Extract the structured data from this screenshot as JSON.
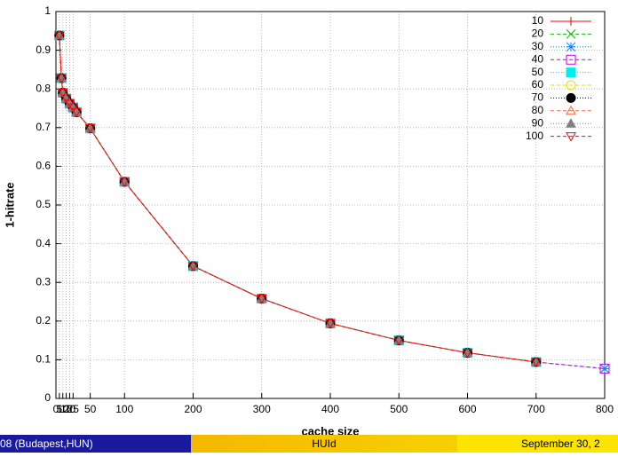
{
  "chart_data": {
    "type": "line",
    "xlabel": "cache size",
    "ylabel": "1-hitrate",
    "x": [
      5,
      8,
      10,
      15,
      20,
      25,
      30,
      50,
      100,
      200,
      300,
      400,
      500,
      600,
      700,
      800
    ],
    "xlim": [
      0,
      800
    ],
    "ylim": [
      0,
      1
    ],
    "xticks": [
      0,
      5,
      10,
      15,
      20,
      25,
      50,
      100,
      200,
      300,
      400,
      500,
      600,
      700,
      800
    ],
    "yticks": [
      0,
      0.1,
      0.2,
      0.3,
      0.4,
      0.5,
      0.6,
      0.7,
      0.8,
      0.9,
      1
    ],
    "grid": true,
    "legend": "top-right",
    "series": [
      {
        "name": "10",
        "color": "#ff0000",
        "marker": "plus",
        "values": [
          0.938,
          0.828,
          0.79,
          0.775,
          0.762,
          0.752,
          0.74,
          0.698,
          0.56,
          0.342,
          0.258,
          0.194,
          0.15,
          0.118,
          0.094,
          null
        ]
      },
      {
        "name": "20",
        "color": "#00c000",
        "marker": "cross",
        "values": [
          0.938,
          0.828,
          0.79,
          0.775,
          0.762,
          0.752,
          0.74,
          0.698,
          0.56,
          0.342,
          0.258,
          0.194,
          0.15,
          0.118,
          0.094,
          0.077
        ]
      },
      {
        "name": "30",
        "color": "#0080ff",
        "marker": "star",
        "values": [
          0.938,
          0.828,
          0.79,
          0.775,
          0.762,
          0.752,
          0.74,
          0.698,
          0.56,
          0.342,
          0.258,
          0.194,
          0.15,
          0.118,
          0.094,
          0.077
        ]
      },
      {
        "name": "40",
        "color": "#c000ff",
        "marker": "square",
        "values": [
          0.938,
          0.828,
          0.79,
          0.775,
          0.762,
          0.752,
          0.74,
          0.698,
          0.56,
          0.342,
          0.258,
          0.194,
          0.15,
          0.118,
          0.094,
          0.077
        ]
      },
      {
        "name": "50",
        "color": "#00eeee",
        "marker": "square-filled",
        "values": [
          0.938,
          0.828,
          0.79,
          0.775,
          0.762,
          0.752,
          0.74,
          0.698,
          0.56,
          0.342,
          0.258,
          0.194,
          0.15,
          0.118,
          0.094,
          null
        ]
      },
      {
        "name": "60",
        "color": "#e0e000",
        "marker": "circle",
        "values": [
          0.938,
          0.828,
          0.79,
          0.775,
          0.762,
          0.752,
          0.74,
          0.698,
          0.56,
          0.342,
          0.258,
          0.194,
          0.15,
          0.118,
          0.094,
          null
        ]
      },
      {
        "name": "70",
        "color": "#000000",
        "marker": "circle-filled",
        "values": [
          0.938,
          0.828,
          0.79,
          0.775,
          0.762,
          0.752,
          0.74,
          0.698,
          0.56,
          0.342,
          0.258,
          0.194,
          0.15,
          0.118,
          0.094,
          null
        ]
      },
      {
        "name": "80",
        "color": "#ff6040",
        "marker": "triangle",
        "values": [
          0.938,
          0.828,
          0.79,
          0.775,
          0.762,
          0.752,
          0.74,
          0.698,
          0.56,
          0.342,
          0.258,
          0.194,
          0.15,
          0.118,
          0.094,
          null
        ]
      },
      {
        "name": "90",
        "color": "#808080",
        "marker": "triangle-filled",
        "values": [
          0.938,
          0.828,
          0.79,
          0.775,
          0.762,
          0.752,
          0.74,
          0.698,
          0.56,
          0.342,
          0.258,
          0.194,
          0.15,
          0.118,
          0.094,
          null
        ]
      },
      {
        "name": "100",
        "color": "#ff0000",
        "marker": "triangle-down",
        "values": [
          0.938,
          0.828,
          0.79,
          0.775,
          0.762,
          0.752,
          0.74,
          0.698,
          0.56,
          0.342,
          0.258,
          0.194,
          0.15,
          0.118,
          0.094,
          null
        ]
      }
    ]
  },
  "footer": {
    "left": "08  (Budapest,HUN)",
    "center": "HUId",
    "right": "September 30, 2"
  }
}
